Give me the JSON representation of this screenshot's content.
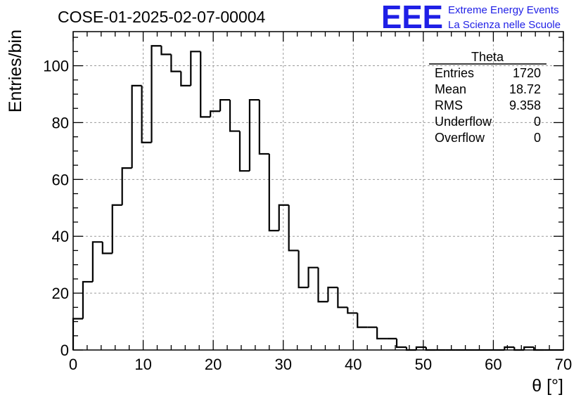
{
  "header": {
    "title": "COSE-01-2025-02-07-00004"
  },
  "logo": {
    "mark": "EEE",
    "line1": "Extreme Energy Events",
    "line2": "La Scienza nelle Scuole",
    "color": "#1f1fe6"
  },
  "stats_box": {
    "name": "Theta",
    "rows": [
      {
        "label": "Entries",
        "value": "1720"
      },
      {
        "label": "Mean",
        "value": "18.72"
      },
      {
        "label": "RMS",
        "value": "9.358"
      },
      {
        "label": "Underflow",
        "value": "0"
      },
      {
        "label": "Overflow",
        "value": "0"
      }
    ]
  },
  "chart_data": {
    "type": "bar",
    "style": "step-histogram",
    "title": "COSE-01-2025-02-07-00004",
    "xlabel": "θ [°]",
    "ylabel": "Entries/bin",
    "xlim": [
      0,
      70
    ],
    "ylim": [
      0,
      112
    ],
    "xticks": [
      0,
      10,
      20,
      30,
      40,
      50,
      60,
      70
    ],
    "yticks": [
      0,
      20,
      40,
      60,
      80,
      100
    ],
    "grid": true,
    "bin_width": 1.4,
    "values": [
      11,
      24,
      38,
      34,
      51,
      64,
      93,
      73,
      107,
      104,
      98,
      93,
      105,
      82,
      84,
      88,
      77,
      63,
      88,
      69,
      42,
      51,
      35,
      22,
      29,
      17,
      22,
      15,
      13,
      8,
      8,
      4,
      4,
      1,
      0,
      1,
      0,
      0,
      0,
      0,
      0,
      0,
      0,
      0,
      1,
      0,
      1,
      0,
      0,
      0
    ],
    "line_color": "#000000",
    "grid_color": "#9a9a9a"
  }
}
